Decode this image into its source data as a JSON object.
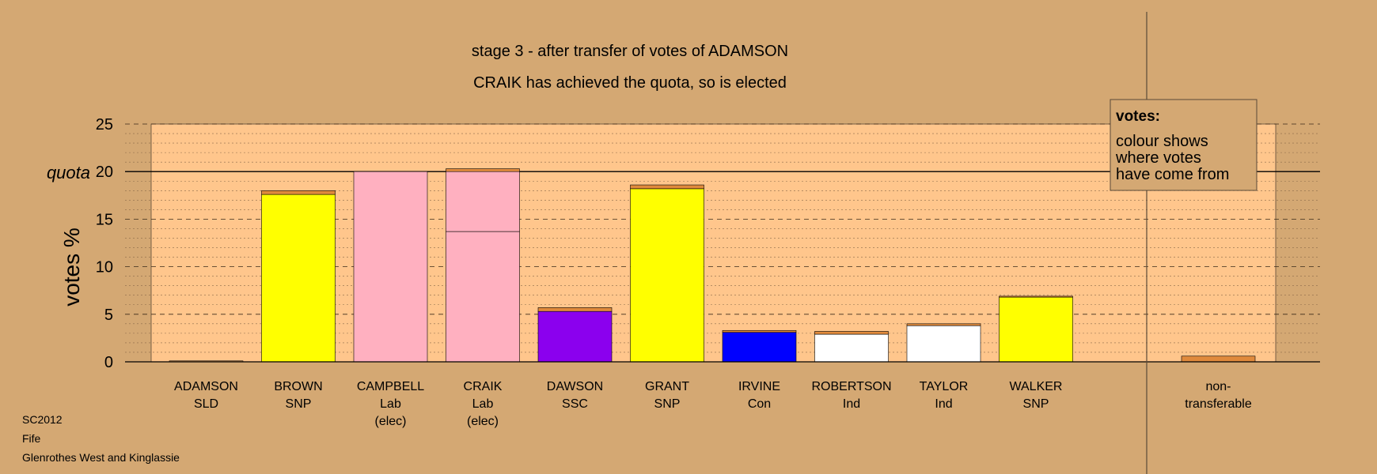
{
  "title": "stage 3 - after transfer of votes of ADAMSON",
  "subtitle": "CRAIK has achieved the quota, so is elected",
  "quota_label": "quota",
  "legend": {
    "heading": "votes:",
    "lines": [
      "colour shows",
      "where votes",
      "have come from"
    ]
  },
  "footer": [
    "SC2012",
    "Fife",
    "Glenrothes West and Kinglassie"
  ],
  "colors": {
    "background": "#d4a873",
    "plot_area": "#ffc68c",
    "SLD": "#f0a050",
    "SNP": "#ffff00",
    "Lab": "#ffb0c0",
    "SSC": "#8b00ee",
    "Con": "#0000ff",
    "Ind": "#ffffff",
    "transfer": "#e08a3c"
  },
  "chart_data": {
    "type": "bar",
    "stacked": true,
    "ylabel": "votes %",
    "ylim": [
      0,
      25
    ],
    "yticks": [
      0,
      5,
      10,
      15,
      20,
      25
    ],
    "quota": 20,
    "grid": true,
    "legend_position": "top-right",
    "categories": [
      {
        "name": "ADAMSON",
        "party": "SLD",
        "note": "",
        "segments": [
          {
            "value": 0.1,
            "color": "SLD"
          }
        ]
      },
      {
        "name": "BROWN",
        "party": "SNP",
        "note": "",
        "segments": [
          {
            "value": 17.6,
            "color": "SNP"
          },
          {
            "value": 0.4,
            "color": "transfer"
          }
        ]
      },
      {
        "name": "CAMPBELL",
        "party": "Lab",
        "note": "(elec)",
        "segments": [
          {
            "value": 20.0,
            "color": "Lab"
          }
        ]
      },
      {
        "name": "CRAIK",
        "party": "Lab",
        "note": "(elec)",
        "segments": [
          {
            "value": 13.7,
            "color": "Lab"
          },
          {
            "value": 6.3,
            "color": "Lab"
          },
          {
            "value": 0.3,
            "color": "transfer"
          }
        ]
      },
      {
        "name": "DAWSON",
        "party": "SSC",
        "note": "",
        "segments": [
          {
            "value": 5.3,
            "color": "SSC"
          },
          {
            "value": 0.4,
            "color": "transfer"
          }
        ]
      },
      {
        "name": "GRANT",
        "party": "SNP",
        "note": "",
        "segments": [
          {
            "value": 18.2,
            "color": "SNP"
          },
          {
            "value": 0.4,
            "color": "transfer"
          }
        ]
      },
      {
        "name": "IRVINE",
        "party": "Con",
        "note": "",
        "segments": [
          {
            "value": 3.1,
            "color": "Con"
          },
          {
            "value": 0.2,
            "color": "transfer"
          }
        ]
      },
      {
        "name": "ROBERTSON",
        "party": "Ind",
        "note": "",
        "segments": [
          {
            "value": 2.9,
            "color": "Ind"
          },
          {
            "value": 0.3,
            "color": "transfer"
          }
        ]
      },
      {
        "name": "TAYLOR",
        "party": "Ind",
        "note": "",
        "segments": [
          {
            "value": 3.8,
            "color": "Ind"
          },
          {
            "value": 0.2,
            "color": "transfer"
          }
        ]
      },
      {
        "name": "WALKER",
        "party": "SNP",
        "note": "",
        "segments": [
          {
            "value": 6.8,
            "color": "SNP"
          },
          {
            "value": 0.1,
            "color": "transfer"
          }
        ]
      }
    ],
    "nontransferable": {
      "label_lines": [
        "non-",
        "transferable"
      ],
      "segments": [
        {
          "value": 0.6,
          "color": "transfer"
        }
      ]
    }
  }
}
